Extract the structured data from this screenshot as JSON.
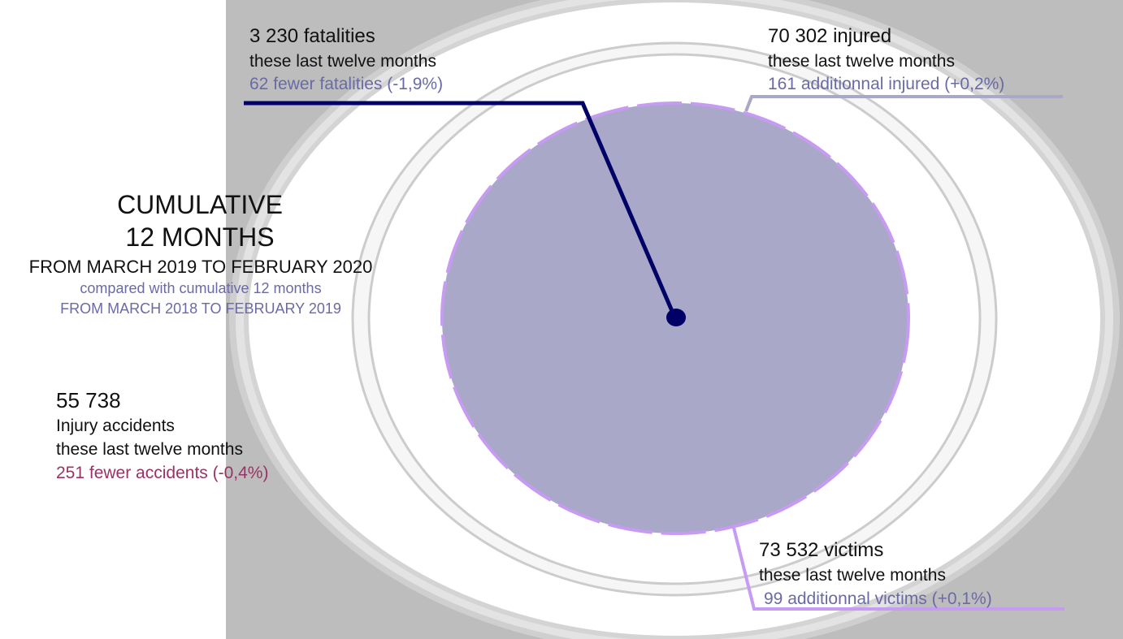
{
  "header": {
    "title_line1": "CUMULATIVE",
    "title_line2": "12 MONTHS",
    "period": "FROM MARCH 2019 TO FEBRUARY 2020",
    "compare_line1": "compared with cumulative 12 months",
    "compare_line2": "FROM MARCH 2018 TO FEBRUARY 2019"
  },
  "stats": {
    "fatalities": {
      "value": "3 230 fatalities",
      "period": "these last twelve months",
      "change": "62 fewer fatalities (-1,9%)"
    },
    "injured": {
      "value": "70 302 injured",
      "period": "these last twelve months",
      "change": "161 additionnal injured (+0,2%)"
    },
    "victims": {
      "value": "73 532 victims",
      "period": "these last twelve months",
      "change": "99 additionnal victims (+0,1%)"
    },
    "accidents": {
      "value": "55 738",
      "label": "Injury accidents",
      "period": "these last twelve months",
      "change": "251 fewer accidents (-0,4%)"
    }
  },
  "colors": {
    "fatalities": "#000066",
    "injured": "#a9a8c8",
    "victims": "#c79bf2",
    "accidents": "#993366",
    "compare_text": "#6a6aa6"
  }
}
